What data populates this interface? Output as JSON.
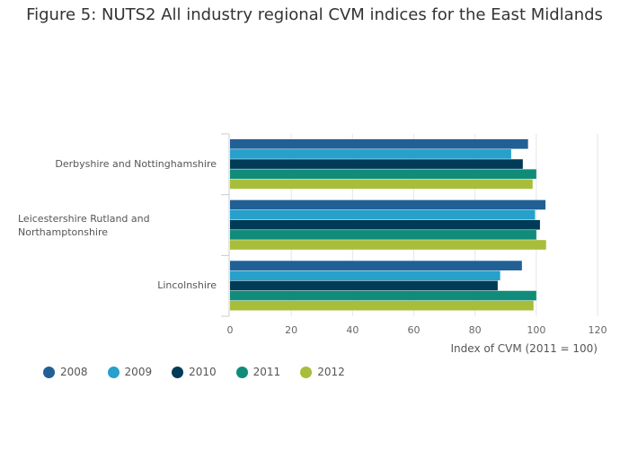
{
  "chart_data": {
    "type": "bar",
    "orientation": "horizontal",
    "title": "Figure 5: NUTS2 All industry regional CVM indices for the East Midlands",
    "xlabel": "Index of CVM (2011 = 100)",
    "ylabel": "",
    "xlim": [
      0,
      120
    ],
    "xticks": [
      0,
      20,
      40,
      60,
      80,
      100,
      120
    ],
    "categories": [
      "Derbyshire and Nottinghamshire",
      "Leicestershire Rutland and Northamptonshire",
      "Lincolnshire"
    ],
    "series": [
      {
        "name": "2008",
        "color": "#206095",
        "values": [
          97.3,
          103.0,
          95.3
        ]
      },
      {
        "name": "2009",
        "color": "#27a0cc",
        "values": [
          91.8,
          99.6,
          88.2
        ]
      },
      {
        "name": "2010",
        "color": "#003c57",
        "values": [
          95.6,
          101.2,
          87.4
        ]
      },
      {
        "name": "2011",
        "color": "#118c7b",
        "values": [
          100,
          100,
          100
        ]
      },
      {
        "name": "2012",
        "color": "#a8bd3a",
        "values": [
          98.8,
          103.2,
          99.1
        ]
      }
    ],
    "legend_position": "bottom-left",
    "grid": true
  }
}
